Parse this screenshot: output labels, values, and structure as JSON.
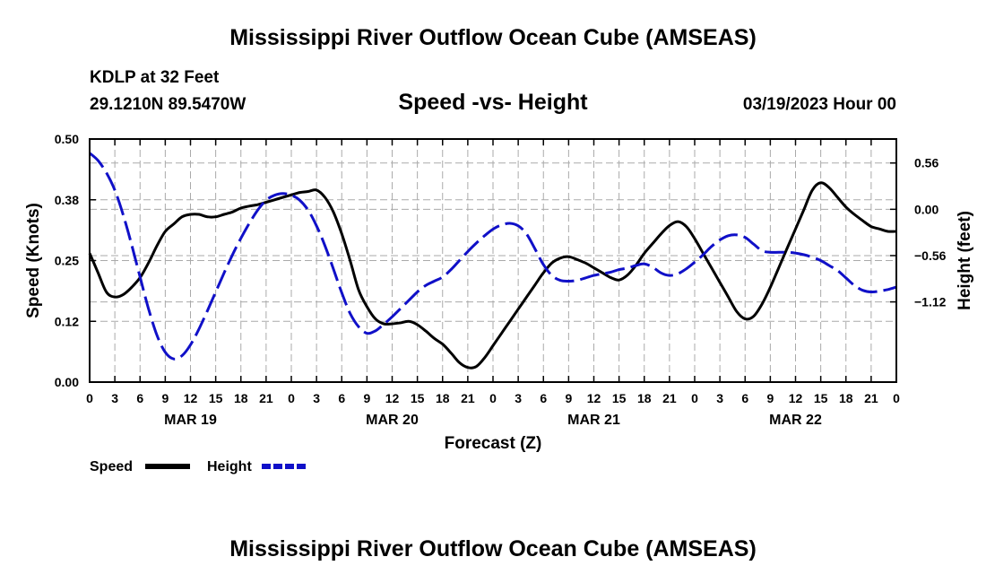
{
  "page": {
    "title": "Mississippi River Outflow Ocean Cube (AMSEAS)",
    "station": "KDLP at 32 Feet",
    "coords": "29.1210N  89.5470W",
    "subtitle": "Speed -vs- Height",
    "datetime": "03/19/2023 Hour 00",
    "footer_title": "Mississippi River Outflow Ocean Cube (AMSEAS)"
  },
  "colors": {
    "speed": "#000000",
    "height": "#1010c8",
    "grid": "#aaaaaa"
  },
  "chart_data": {
    "type": "line",
    "title": "Speed -vs- Height",
    "xlabel": "Forecast (Z)",
    "ylabel_left": "Speed (Knots)",
    "ylabel_right": "Height (feet)",
    "x_range_hours": [
      0,
      96
    ],
    "hour_tick_labels": [
      "0",
      "3",
      "6",
      "9",
      "12",
      "15",
      "18",
      "21",
      "0",
      "3",
      "6",
      "9",
      "12",
      "15",
      "18",
      "21",
      "0",
      "3",
      "6",
      "9",
      "12",
      "15",
      "18",
      "21",
      "0",
      "3",
      "6",
      "9",
      "12",
      "15",
      "18",
      "21",
      "0"
    ],
    "date_labels": [
      {
        "hour": 12,
        "label": "MAR 19"
      },
      {
        "hour": 36,
        "label": "MAR 20"
      },
      {
        "hour": 60,
        "label": "MAR 21"
      },
      {
        "hour": 84,
        "label": "MAR 22"
      }
    ],
    "left_axis": {
      "range": [
        0.0,
        0.5
      ],
      "ticks": [
        0.0,
        0.125,
        0.25,
        0.375,
        0.5
      ],
      "tick_labels": [
        "0.00",
        "0.12",
        "0.25",
        "0.38",
        "0.50"
      ]
    },
    "right_axis": {
      "range": [
        -2.09,
        0.85
      ],
      "ticks": [
        -1.12,
        -0.56,
        0.0,
        0.56
      ],
      "tick_labels": [
        "−1.12",
        "−0.56",
        "0.00",
        "0.56"
      ]
    },
    "legend": [
      {
        "name": "Speed",
        "style": "solid"
      },
      {
        "name": "Height",
        "style": "dashed"
      }
    ],
    "series": [
      {
        "name": "Speed",
        "axis": "left",
        "style": "solid",
        "x": [
          0,
          1,
          2,
          3,
          4,
          5,
          6,
          7,
          8,
          9,
          10,
          11,
          12,
          13,
          14,
          15,
          16,
          17,
          18,
          19,
          20,
          21,
          22,
          23,
          24,
          25,
          26,
          27,
          28,
          29,
          30,
          31,
          32,
          33,
          34,
          35,
          36,
          37,
          38,
          39,
          40,
          41,
          42,
          43,
          44,
          45,
          46,
          47,
          48,
          49,
          50,
          51,
          52,
          53,
          54,
          55,
          56,
          57,
          58,
          59,
          60,
          61,
          62,
          63,
          64,
          65,
          66,
          67,
          68,
          69,
          70,
          71,
          72,
          73,
          74,
          75,
          76,
          77,
          78,
          79,
          80,
          81,
          82,
          83,
          84,
          85,
          86,
          87,
          88,
          89,
          90,
          91,
          92,
          93,
          94,
          95,
          96
        ],
        "values": [
          0.265,
          0.225,
          0.185,
          0.175,
          0.18,
          0.195,
          0.215,
          0.245,
          0.28,
          0.31,
          0.325,
          0.34,
          0.345,
          0.345,
          0.34,
          0.34,
          0.345,
          0.35,
          0.358,
          0.362,
          0.365,
          0.37,
          0.375,
          0.38,
          0.385,
          0.39,
          0.392,
          0.395,
          0.38,
          0.35,
          0.305,
          0.25,
          0.19,
          0.155,
          0.13,
          0.12,
          0.12,
          0.122,
          0.125,
          0.118,
          0.105,
          0.09,
          0.078,
          0.06,
          0.04,
          0.03,
          0.032,
          0.05,
          0.075,
          0.1,
          0.125,
          0.15,
          0.175,
          0.2,
          0.225,
          0.245,
          0.255,
          0.258,
          0.252,
          0.245,
          0.235,
          0.225,
          0.215,
          0.21,
          0.22,
          0.24,
          0.265,
          0.285,
          0.305,
          0.322,
          0.33,
          0.32,
          0.295,
          0.265,
          0.235,
          0.205,
          0.175,
          0.145,
          0.13,
          0.135,
          0.16,
          0.195,
          0.235,
          0.275,
          0.315,
          0.355,
          0.395,
          0.41,
          0.4,
          0.38,
          0.36,
          0.345,
          0.332,
          0.32,
          0.315,
          0.31,
          0.31
        ]
      },
      {
        "name": "Height",
        "axis": "right",
        "style": "dashed",
        "x": [
          0,
          1,
          2,
          3,
          4,
          5,
          6,
          7,
          8,
          9,
          10,
          11,
          12,
          13,
          14,
          15,
          16,
          17,
          18,
          19,
          20,
          21,
          22,
          23,
          24,
          25,
          26,
          27,
          28,
          29,
          30,
          31,
          32,
          33,
          34,
          35,
          36,
          37,
          38,
          39,
          40,
          41,
          42,
          43,
          44,
          45,
          46,
          47,
          48,
          49,
          50,
          51,
          52,
          53,
          54,
          55,
          56,
          57,
          58,
          59,
          60,
          61,
          62,
          63,
          64,
          65,
          66,
          67,
          68,
          69,
          70,
          71,
          72,
          73,
          74,
          75,
          76,
          77,
          78,
          79,
          80,
          81,
          82,
          83,
          84,
          85,
          86,
          87,
          88,
          89,
          90,
          91,
          92,
          93,
          94,
          95,
          96
        ],
        "values": [
          0.68,
          0.59,
          0.44,
          0.23,
          -0.07,
          -0.43,
          -0.82,
          -1.2,
          -1.52,
          -1.73,
          -1.81,
          -1.77,
          -1.64,
          -1.45,
          -1.23,
          -1.0,
          -0.77,
          -0.55,
          -0.35,
          -0.17,
          -0.01,
          0.11,
          0.17,
          0.19,
          0.17,
          0.11,
          -0.01,
          -0.2,
          -0.44,
          -0.72,
          -1.01,
          -1.26,
          -1.42,
          -1.5,
          -1.47,
          -1.39,
          -1.3,
          -1.2,
          -1.1,
          -1.0,
          -0.92,
          -0.87,
          -0.82,
          -0.73,
          -0.62,
          -0.51,
          -0.41,
          -0.32,
          -0.24,
          -0.19,
          -0.17,
          -0.2,
          -0.3,
          -0.48,
          -0.67,
          -0.8,
          -0.86,
          -0.87,
          -0.86,
          -0.83,
          -0.8,
          -0.78,
          -0.76,
          -0.73,
          -0.71,
          -0.68,
          -0.66,
          -0.7,
          -0.77,
          -0.8,
          -0.78,
          -0.72,
          -0.64,
          -0.55,
          -0.45,
          -0.37,
          -0.32,
          -0.31,
          -0.34,
          -0.42,
          -0.5,
          -0.52,
          -0.52,
          -0.52,
          -0.53,
          -0.55,
          -0.58,
          -0.62,
          -0.68,
          -0.74,
          -0.83,
          -0.92,
          -0.98,
          -1.0,
          -0.99,
          -0.97,
          -0.94
        ]
      }
    ]
  }
}
